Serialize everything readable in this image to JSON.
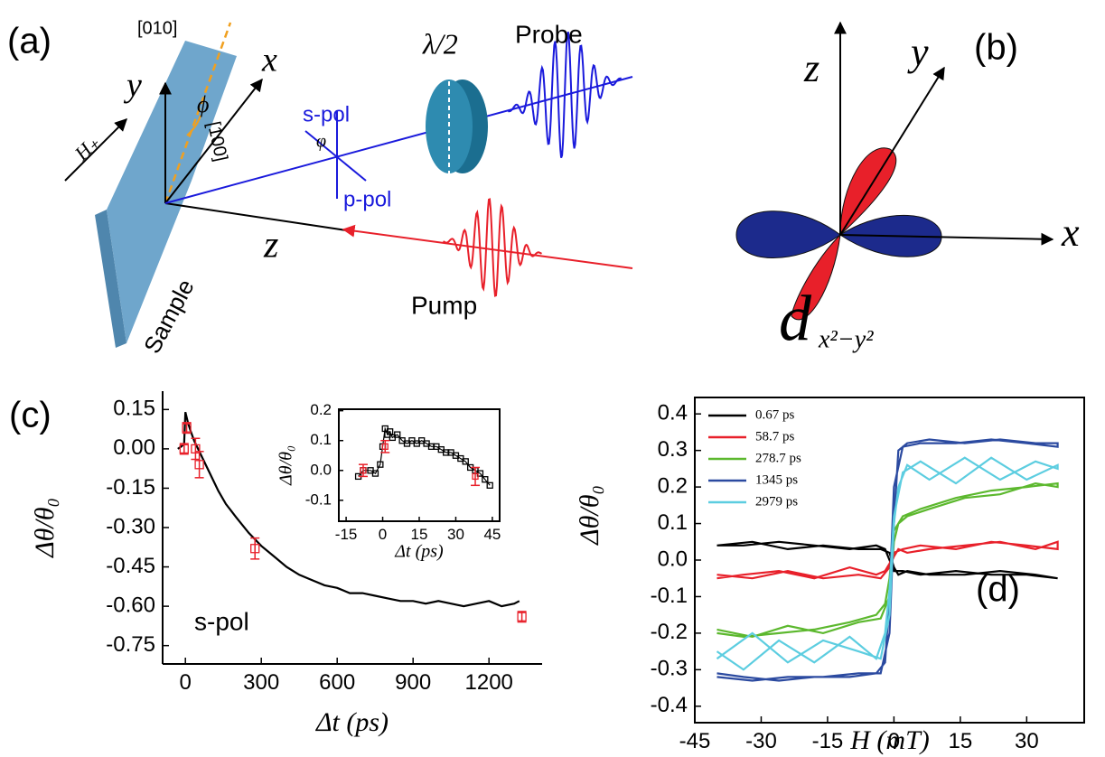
{
  "diagram_a": {
    "panel": "(a)",
    "axis_010": "[010]",
    "y": "y",
    "x": "x",
    "phi": "ϕ",
    "axis_100": "[100]",
    "field": "H₊",
    "s_pol": "s-pol",
    "angle": "φ",
    "p_pol": "p-pol",
    "plate": "λ/2",
    "probe": "Probe",
    "z": "z",
    "pump": "Pump",
    "sample": "Sample"
  },
  "diagram_b": {
    "panel": "(b)",
    "z": "z",
    "y": "y",
    "x": "x",
    "orbital": "d",
    "orbital_sub": "x²−y²"
  },
  "chart_data": [
    {
      "type": "line",
      "panel": "(c)",
      "annotation": "s-pol",
      "xlabel": "Δt (ps)",
      "ylabel": "Δθ/θ₀",
      "box": false,
      "xlim": [
        -90,
        1410
      ],
      "ylim": [
        -0.82,
        0.22
      ],
      "xticks": [
        0,
        300,
        600,
        900,
        1200
      ],
      "yticks": [
        0.15,
        {
          "value": 0,
          "label": "0.00"
        },
        -0.15,
        {
          "value": -0.3,
          "label": "-0.30"
        },
        -0.45,
        {
          "value": -0.6,
          "label": "-0.60"
        },
        -0.75
      ],
      "series": [
        {
          "color": "#000000",
          "line": true,
          "x": [
            -30,
            -15,
            -5,
            0,
            5,
            10,
            20,
            35,
            50,
            75,
            100,
            130,
            160,
            200,
            250,
            300,
            350,
            400,
            450,
            500,
            550,
            600,
            650,
            700,
            750,
            800,
            850,
            900,
            950,
            1000,
            1050,
            1100,
            1150,
            1200,
            1250,
            1300,
            1320
          ],
          "values": [
            0.0,
            0.01,
            0.02,
            0.14,
            0.12,
            0.1,
            0.07,
            0.03,
            0.0,
            -0.05,
            -0.1,
            -0.16,
            -0.21,
            -0.26,
            -0.32,
            -0.37,
            -0.41,
            -0.45,
            -0.48,
            -0.5,
            -0.52,
            -0.53,
            -0.55,
            -0.55,
            -0.56,
            -0.57,
            -0.58,
            -0.58,
            -0.59,
            -0.58,
            -0.59,
            -0.6,
            -0.59,
            -0.58,
            -0.6,
            -0.59,
            -0.58
          ]
        },
        {
          "color": "#e8202a",
          "line": false,
          "marker": "open-square",
          "x": [
            -5,
            5,
            40,
            55,
            275,
            1330
          ],
          "values": [
            0.0,
            0.08,
            0.0,
            -0.06,
            -0.38,
            -0.64
          ],
          "errors": [
            0.02,
            0.02,
            0.04,
            0.05,
            0.04,
            0.02
          ]
        }
      ]
    },
    {
      "type": "line",
      "xlabel": "Δt (ps)",
      "ylabel": "Δθ/θ₀",
      "box": true,
      "xlim": [
        -18,
        48
      ],
      "ylim": [
        -0.17,
        0.205
      ],
      "xticks": [
        -15,
        0,
        15,
        30,
        45
      ],
      "yticks": [
        0.2,
        0.1,
        {
          "value": 0,
          "label": "0.0"
        },
        -0.1
      ],
      "series": [
        {
          "color": "#000000",
          "line": true,
          "marker": "open-square",
          "x": [
            -10,
            -8,
            -5,
            -3,
            -1,
            0,
            1,
            2,
            3,
            4,
            6,
            8,
            10,
            12,
            14,
            16,
            18,
            20,
            22,
            24,
            26,
            28,
            30,
            32,
            34,
            36,
            38,
            40,
            42,
            44
          ],
          "values": [
            -0.02,
            0,
            0,
            -0.01,
            0.02,
            0.08,
            0.14,
            0.12,
            0.13,
            0.11,
            0.12,
            0.1,
            0.09,
            0.1,
            0.09,
            0.1,
            0.09,
            0.08,
            0.08,
            0.07,
            0.06,
            0.06,
            0.05,
            0.04,
            0.03,
            0.01,
            0.0,
            -0.01,
            -0.03,
            -0.05
          ]
        },
        {
          "color": "#e8202a",
          "line": false,
          "marker": "open-square",
          "x": [
            -8,
            1,
            38
          ],
          "values": [
            0.0,
            0.08,
            -0.02
          ],
          "errors": [
            0.02,
            0.02,
            0.03
          ]
        }
      ]
    },
    {
      "type": "line",
      "panel": "(d)",
      "xlabel": "H (mT)",
      "ylabel": "Δθ/θ₀",
      "box": true,
      "legend": "upper left",
      "xlim": [
        -45,
        43
      ],
      "ylim": [
        -0.445,
        0.445
      ],
      "xticks": [
        -45,
        -30,
        -15,
        0,
        15,
        30
      ],
      "yticks": [
        0.4,
        0.3,
        0.2,
        0.1,
        {
          "value": 0,
          "label": "0.0"
        },
        -0.1,
        -0.2,
        -0.3,
        -0.4
      ],
      "x": [
        -40,
        -32,
        -24,
        -16,
        -8,
        -3,
        -1,
        0,
        1,
        3,
        8,
        16,
        24,
        32,
        37,
        37,
        30,
        22,
        14,
        6,
        2,
        0,
        -1,
        -2,
        -4,
        -10,
        -18,
        -26,
        -34,
        -40
      ],
      "series": [
        {
          "name": "0.67 ps",
          "color": "#000000",
          "values": [
            0.04,
            0.05,
            0.03,
            0.04,
            0.03,
            0.03,
            0.02,
            -0.02,
            -0.04,
            -0.03,
            -0.04,
            -0.04,
            -0.03,
            -0.04,
            -0.05,
            -0.05,
            -0.04,
            -0.04,
            -0.03,
            -0.04,
            -0.03,
            -0.03,
            0.0,
            0.03,
            0.04,
            0.03,
            0.04,
            0.05,
            0.04,
            0.04
          ]
        },
        {
          "name": "58.7 ps",
          "color": "#e8202a",
          "values": [
            -0.04,
            -0.05,
            -0.03,
            -0.05,
            -0.04,
            -0.05,
            -0.02,
            0.01,
            0.03,
            0.02,
            0.03,
            0.04,
            0.05,
            0.03,
            0.05,
            0.03,
            0.04,
            0.05,
            0.03,
            0.04,
            0.03,
            0.02,
            -0.01,
            -0.03,
            -0.04,
            -0.02,
            -0.05,
            -0.03,
            -0.04,
            -0.05
          ]
        },
        {
          "name": "278.7 ps",
          "color": "#5cb82e",
          "values": [
            -0.19,
            -0.21,
            -0.18,
            -0.2,
            -0.17,
            -0.16,
            -0.1,
            0.05,
            0.1,
            0.12,
            0.14,
            0.17,
            0.18,
            0.21,
            0.2,
            0.21,
            0.2,
            0.19,
            0.17,
            0.14,
            0.12,
            0.08,
            -0.05,
            -0.12,
            -0.15,
            -0.17,
            -0.19,
            -0.2,
            -0.21,
            -0.2
          ]
        },
        {
          "name": "1345 ps",
          "color": "#2b4aa0",
          "values": [
            -0.32,
            -0.33,
            -0.32,
            -0.32,
            -0.31,
            -0.31,
            -0.2,
            0.1,
            0.3,
            0.32,
            0.33,
            0.32,
            0.33,
            0.32,
            0.32,
            0.31,
            0.32,
            0.33,
            0.32,
            0.32,
            0.31,
            0.2,
            -0.1,
            -0.28,
            -0.31,
            -0.32,
            -0.32,
            -0.33,
            -0.32,
            -0.31
          ]
        },
        {
          "name": "2979 ps",
          "color": "#5ccde0",
          "values": [
            -0.27,
            -0.2,
            -0.28,
            -0.22,
            -0.25,
            -0.27,
            -0.15,
            0.1,
            0.2,
            0.26,
            0.22,
            0.28,
            0.22,
            0.27,
            0.25,
            0.26,
            0.22,
            0.28,
            0.21,
            0.27,
            0.24,
            0.12,
            -0.08,
            -0.2,
            -0.27,
            -0.21,
            -0.28,
            -0.22,
            -0.3,
            -0.25
          ]
        }
      ]
    }
  ]
}
